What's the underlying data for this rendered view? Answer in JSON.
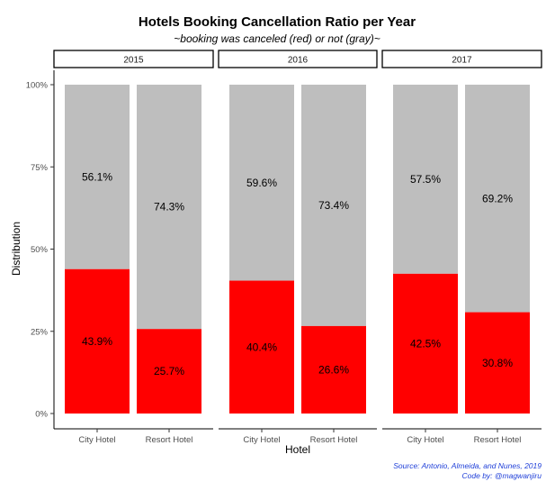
{
  "chart_data": {
    "type": "bar",
    "stacked": true,
    "title": "Hotels Booking Cancellation Ratio per Year",
    "subtitle": "~booking was canceled (red) or not (gray)~",
    "xlabel": "Hotel",
    "ylabel": "Distribution",
    "ylim": [
      0,
      100
    ],
    "yticks": [
      "0%",
      "25%",
      "50%",
      "75%",
      "100%"
    ],
    "ytick_values": [
      0,
      25,
      50,
      75,
      100
    ],
    "categories": [
      "City Hotel",
      "Resort Hotel"
    ],
    "colors": {
      "canceled": "#ff0000",
      "not_canceled": "#bebebe"
    },
    "facets": [
      {
        "label": "2015",
        "bars": [
          {
            "category": "City Hotel",
            "canceled": 43.9,
            "not_canceled": 56.1,
            "canceled_label": "43.9%",
            "not_canceled_label": "56.1%"
          },
          {
            "category": "Resort Hotel",
            "canceled": 25.7,
            "not_canceled": 74.3,
            "canceled_label": "25.7%",
            "not_canceled_label": "74.3%"
          }
        ]
      },
      {
        "label": "2016",
        "bars": [
          {
            "category": "City Hotel",
            "canceled": 40.4,
            "not_canceled": 59.6,
            "canceled_label": "40.4%",
            "not_canceled_label": "59.6%"
          },
          {
            "category": "Resort Hotel",
            "canceled": 26.6,
            "not_canceled": 73.4,
            "canceled_label": "26.6%",
            "not_canceled_label": "73.4%"
          }
        ]
      },
      {
        "label": "2017",
        "bars": [
          {
            "category": "City Hotel",
            "canceled": 42.5,
            "not_canceled": 57.5,
            "canceled_label": "42.5%",
            "not_canceled_label": "57.5%"
          },
          {
            "category": "Resort Hotel",
            "canceled": 30.8,
            "not_canceled": 69.2,
            "canceled_label": "30.8%",
            "not_canceled_label": "69.2%"
          }
        ]
      }
    ],
    "caption": [
      "Source: Antonio, Almeida, and Nunes, 2019",
      "Code by: @magwanjiru"
    ]
  }
}
